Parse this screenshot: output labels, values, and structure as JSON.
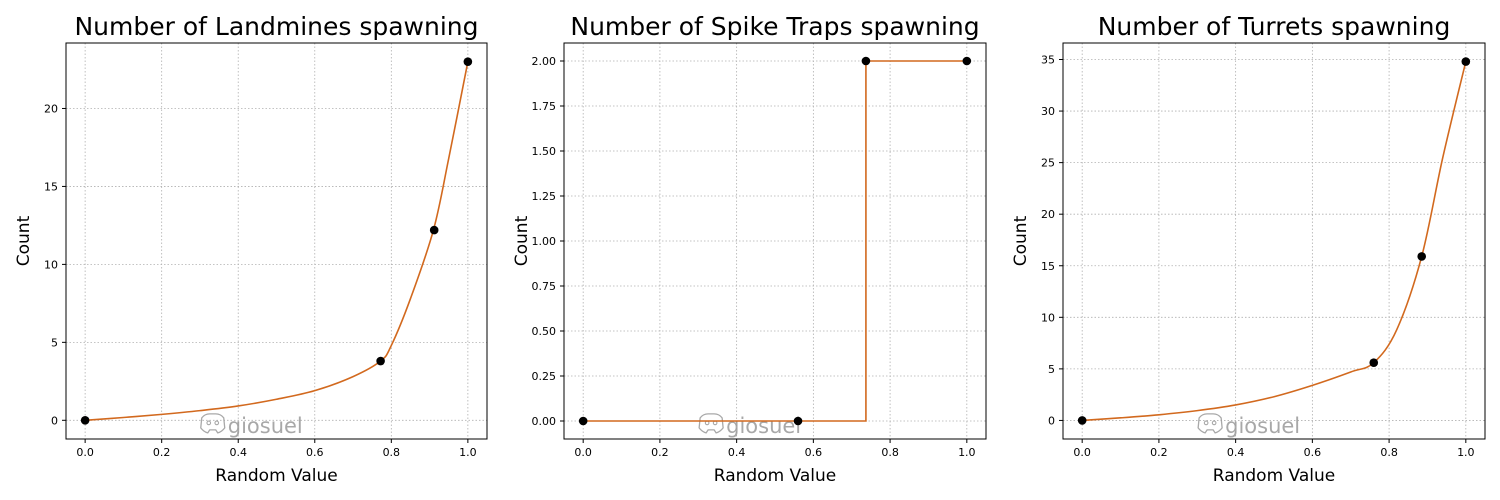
{
  "watermark": {
    "text": "giosuel",
    "icon": "discord-icon"
  },
  "colors": {
    "curve": "#d2691e",
    "marker": "#000000",
    "grid": "#b0b0b0"
  },
  "chart_data": [
    {
      "type": "line",
      "title": "Number of Landmines spawning",
      "xlabel": "Random Value",
      "ylabel": "Count",
      "xlim": [
        -0.05,
        1.05
      ],
      "ylim": [
        -1.2,
        24.2
      ],
      "xticks": [
        0.0,
        0.2,
        0.4,
        0.6,
        0.8,
        1.0
      ],
      "xtick_labels": [
        "0.0",
        "0.2",
        "0.4",
        "0.6",
        "0.8",
        "1.0"
      ],
      "yticks": [
        0,
        5,
        10,
        15,
        20
      ],
      "ytick_labels": [
        "0",
        "5",
        "10",
        "15",
        "20"
      ],
      "grid": true,
      "interpolation": "smooth",
      "curve": {
        "x": [
          0,
          0.1,
          0.2,
          0.3,
          0.4,
          0.5,
          0.6,
          0.7,
          0.772,
          0.8,
          0.85,
          0.91,
          0.95,
          1.0
        ],
        "y": [
          0,
          0.18,
          0.38,
          0.62,
          0.92,
          1.35,
          1.9,
          2.8,
          3.8,
          4.8,
          7.8,
          12.2,
          16.8,
          23
        ]
      },
      "points": {
        "x": [
          0,
          0.772,
          0.912,
          1.0
        ],
        "y": [
          0,
          3.8,
          12.2,
          23
        ]
      }
    },
    {
      "type": "line",
      "title": "Number of Spike Traps spawning",
      "xlabel": "Random Value",
      "ylabel": "Count",
      "xlim": [
        -0.05,
        1.05
      ],
      "ylim": [
        -0.1,
        2.1
      ],
      "xticks": [
        0.0,
        0.2,
        0.4,
        0.6,
        0.8,
        1.0
      ],
      "xtick_labels": [
        "0.0",
        "0.2",
        "0.4",
        "0.6",
        "0.8",
        "1.0"
      ],
      "yticks": [
        0,
        0.25,
        0.5,
        0.75,
        1.0,
        1.25,
        1.5,
        1.75,
        2.0
      ],
      "ytick_labels": [
        "0.00",
        "0.25",
        "0.50",
        "0.75",
        "1.00",
        "1.25",
        "1.50",
        "1.75",
        "2.00"
      ],
      "grid": true,
      "interpolation": "step",
      "curve": {
        "x": [
          0,
          0.737,
          0.737,
          1.0
        ],
        "y": [
          0,
          0,
          2,
          2
        ]
      },
      "points": {
        "x": [
          0,
          0.56,
          0.737,
          1.0
        ],
        "y": [
          0,
          0,
          2,
          2
        ]
      }
    },
    {
      "type": "line",
      "title": "Number of Turrets spawning",
      "xlabel": "Random Value",
      "ylabel": "Count",
      "xlim": [
        -0.05,
        1.05
      ],
      "ylim": [
        -1.8,
        36.6
      ],
      "xticks": [
        0.0,
        0.2,
        0.4,
        0.6,
        0.8,
        1.0
      ],
      "xtick_labels": [
        "0.0",
        "0.2",
        "0.4",
        "0.6",
        "0.8",
        "1.0"
      ],
      "yticks": [
        0,
        5,
        10,
        15,
        20,
        25,
        30,
        35
      ],
      "ytick_labels": [
        "0",
        "5",
        "10",
        "15",
        "20",
        "25",
        "30",
        "35"
      ],
      "grid": true,
      "interpolation": "smooth",
      "curve": {
        "x": [
          0,
          0.1,
          0.2,
          0.3,
          0.4,
          0.5,
          0.6,
          0.7,
          0.76,
          0.82,
          0.885,
          0.94,
          1.0
        ],
        "y": [
          0,
          0.25,
          0.55,
          0.95,
          1.5,
          2.3,
          3.4,
          4.7,
          5.6,
          8.8,
          15.9,
          25.5,
          34.8
        ]
      },
      "points": {
        "x": [
          0,
          0.76,
          0.885,
          1.0
        ],
        "y": [
          0,
          5.6,
          15.9,
          34.8
        ]
      }
    }
  ]
}
